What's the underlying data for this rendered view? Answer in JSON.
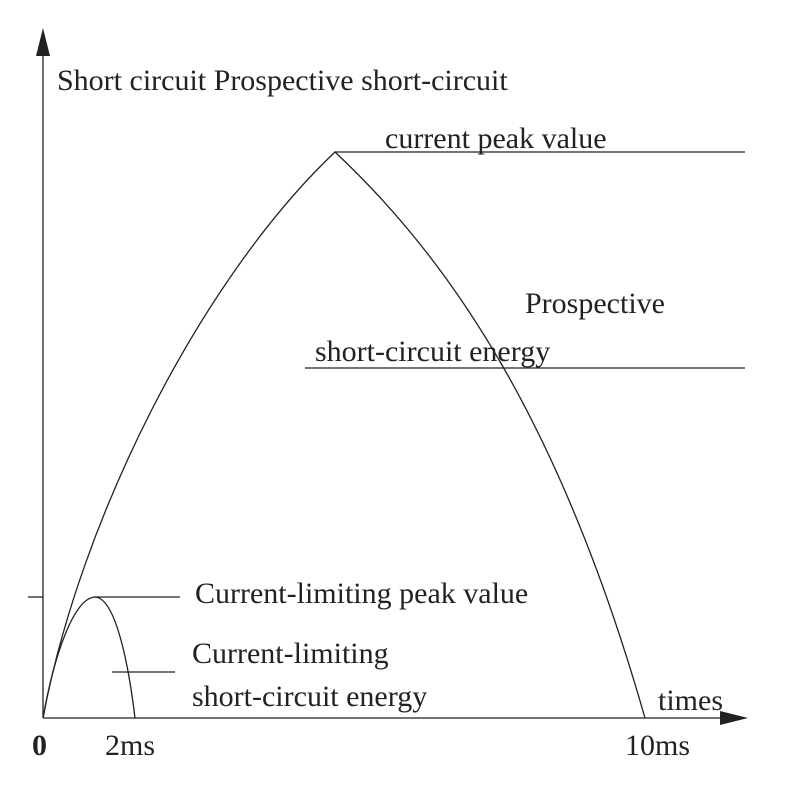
{
  "axes": {
    "y_label": "Short circuit Prospective short-circuit",
    "x_label": "times",
    "origin": "0",
    "x_marks": [
      "2ms",
      "10ms"
    ]
  },
  "annotations": {
    "prospective_peak": "current peak value",
    "prospective_energy": [
      "Prospective",
      "short-circuit energy"
    ],
    "limiting_peak": "Current-limiting peak value",
    "limiting_energy": [
      "Current-limiting",
      "short-circuit energy"
    ]
  }
}
